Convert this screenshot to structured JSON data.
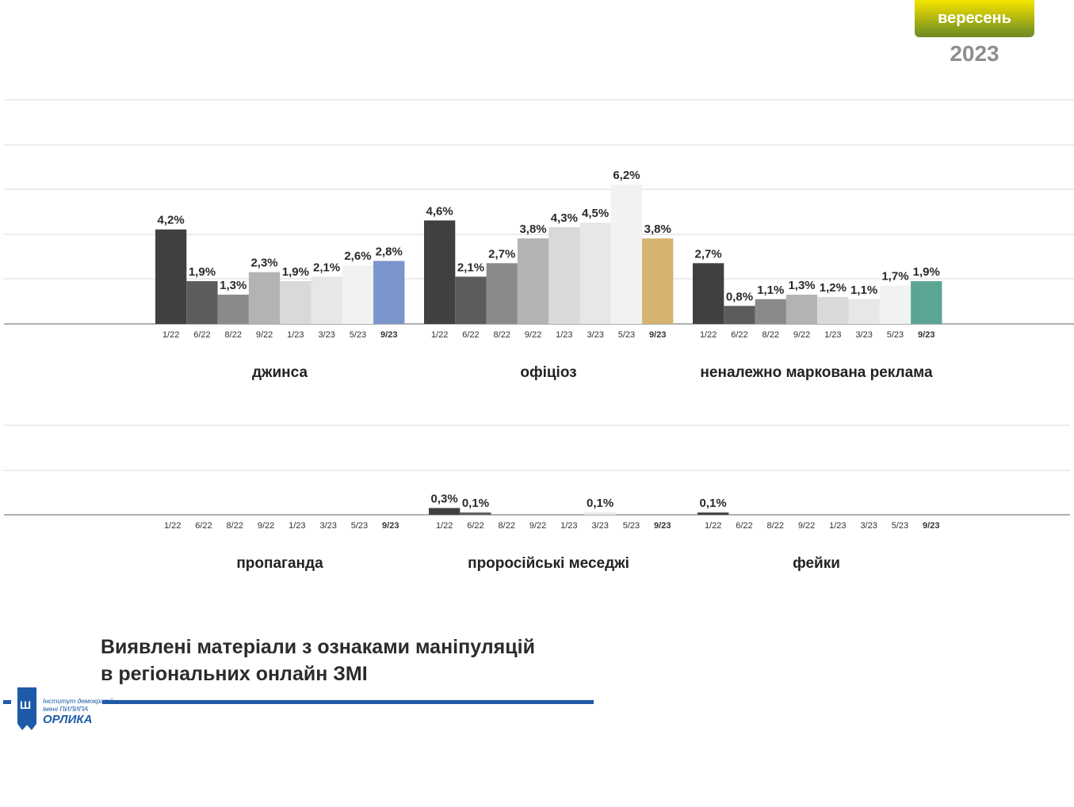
{
  "badge": {
    "month": "вересень",
    "year": "2023"
  },
  "title": {
    "line1": "Виявлені матеріали з ознаками маніпуляцій",
    "line2": "в регіональних онлайн ЗМІ"
  },
  "logo": {
    "line1": "Інститут демократії",
    "line2": "імені ПИЛИПА",
    "line3": "ОРЛИКА"
  },
  "colors": {
    "greys": [
      "#404040",
      "#5c5c5c",
      "#8a8a8a",
      "#b3b3b3",
      "#d9d9d9",
      "#e6e8e6",
      "#f1f3f1"
    ],
    "accent_jynsa": "#7995cb",
    "accent_ofitsioz": "#d6b470",
    "accent_reklama": "#5ba594",
    "gridline": "#d9d9d9",
    "axis": "#7f7f7f"
  },
  "chart_data": [
    {
      "type": "bar",
      "title": "джинса",
      "categories": [
        "1/22",
        "6/22",
        "8/22",
        "9/22",
        "1/23",
        "3/23",
        "5/23",
        "9/23"
      ],
      "values": [
        4.2,
        1.9,
        1.3,
        2.3,
        1.9,
        2.1,
        2.6,
        2.8
      ],
      "labels": [
        "4,2%",
        "1,9%",
        "1,3%",
        "2,3%",
        "1,9%",
        "2,1%",
        "2,6%",
        "2,8%"
      ],
      "unit": "%",
      "ylim": [
        0,
        10
      ],
      "grid": true
    },
    {
      "type": "bar",
      "title": "офіціоз",
      "categories": [
        "1/22",
        "6/22",
        "8/22",
        "9/22",
        "1/23",
        "3/23",
        "5/23",
        "9/23"
      ],
      "values": [
        4.6,
        2.1,
        2.7,
        3.8,
        4.3,
        4.5,
        6.2,
        3.8
      ],
      "labels": [
        "4,6%",
        "2,1%",
        "2,7%",
        "3,8%",
        "4,3%",
        "4,5%",
        "6,2%",
        "3,8%"
      ],
      "unit": "%",
      "ylim": [
        0,
        10
      ],
      "grid": true
    },
    {
      "type": "bar",
      "title": "неналежно маркована реклама",
      "categories": [
        "1/22",
        "6/22",
        "8/22",
        "9/22",
        "1/23",
        "3/23",
        "5/23",
        "9/23"
      ],
      "values": [
        2.7,
        0.8,
        1.1,
        1.3,
        1.2,
        1.1,
        1.7,
        1.9
      ],
      "labels": [
        "2,7%",
        "0,8%",
        "1,1%",
        "1,3%",
        "1,2%",
        "1,1%",
        "1,7%",
        "1,9%"
      ],
      "unit": "%",
      "ylim": [
        0,
        10
      ],
      "grid": true
    },
    {
      "type": "bar",
      "title": "пропаганда",
      "categories": [
        "1/22",
        "6/22",
        "8/22",
        "9/22",
        "1/23",
        "3/23",
        "5/23",
        "9/23"
      ],
      "values": [
        0,
        0,
        0,
        0,
        0,
        0,
        0,
        0
      ],
      "labels": [
        "",
        "",
        "",
        "",
        "",
        "",
        "",
        ""
      ],
      "unit": "%",
      "ylim": [
        0,
        5
      ],
      "grid": true
    },
    {
      "type": "bar",
      "title": "проросійські меседжі",
      "categories": [
        "1/22",
        "6/22",
        "8/22",
        "9/22",
        "1/23",
        "3/23",
        "5/23",
        "9/23"
      ],
      "values": [
        0.3,
        0.1,
        0,
        0,
        0,
        0.1,
        0,
        0
      ],
      "labels": [
        "0,3%",
        "0,1%",
        "",
        "",
        "",
        "0,1%",
        "",
        ""
      ],
      "unit": "%",
      "ylim": [
        0,
        5
      ],
      "grid": true
    },
    {
      "type": "bar",
      "title": "фейки",
      "categories": [
        "1/22",
        "6/22",
        "8/22",
        "9/22",
        "1/23",
        "3/23",
        "5/23",
        "9/23"
      ],
      "values": [
        0.1,
        0,
        0,
        0,
        0,
        0,
        0,
        0
      ],
      "labels": [
        "0,1%",
        "",
        "",
        "",
        "",
        "",
        "",
        ""
      ],
      "unit": "%",
      "ylim": [
        0,
        5
      ],
      "grid": true
    }
  ]
}
